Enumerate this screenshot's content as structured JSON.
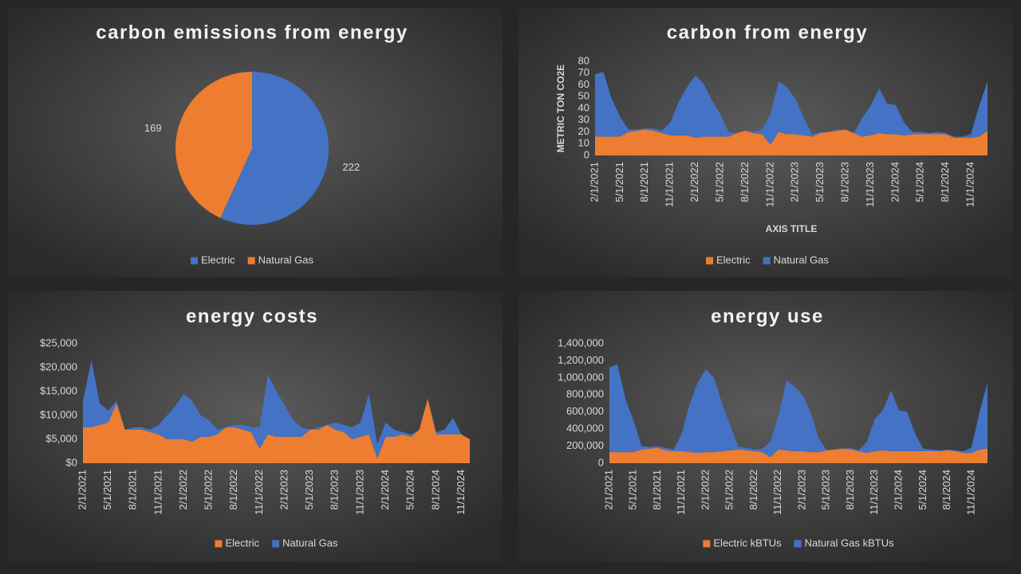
{
  "chart_data": [
    {
      "type": "pie",
      "title": "carbon emissions from energy",
      "categories": [
        "Electric",
        "Natural Gas"
      ],
      "values": [
        222,
        169
      ],
      "colors": [
        "#4472c4",
        "#ed7d31"
      ]
    },
    {
      "type": "area",
      "title": "carbon from energy",
      "y_label": "METRIC TON CO2E",
      "x_label": "AXIS TITLE",
      "categories": [
        "2/1/2021",
        null,
        null,
        "5/1/2021",
        null,
        null,
        "8/1/2021",
        null,
        null,
        "11/1/2021",
        null,
        null,
        "2/1/2022",
        null,
        null,
        "5/1/2022",
        null,
        null,
        "8/1/2022",
        null,
        null,
        "11/1/2022",
        null,
        null,
        "2/1/2023",
        null,
        null,
        "5/1/2023",
        null,
        null,
        "8/1/2023",
        null,
        null,
        "11/1/2023",
        null,
        null,
        "2/1/2024",
        null,
        null,
        "5/1/2024",
        null,
        null,
        "8/1/2024",
        null,
        null,
        "11/1/2024",
        null,
        null
      ],
      "series": [
        {
          "name": "Electric",
          "color": "#ed7d31",
          "values": [
            16,
            16,
            16,
            16,
            20,
            21,
            22,
            21,
            19,
            17,
            17,
            17,
            15,
            16,
            16,
            16,
            16,
            19,
            21,
            19,
            18,
            9,
            20,
            18,
            18,
            17,
            16,
            19,
            20,
            21,
            22,
            19,
            16,
            17,
            19,
            18,
            18,
            17,
            18,
            18,
            18,
            18,
            18,
            15,
            15,
            15,
            16,
            21
          ]
        },
        {
          "name": "Natural Gas",
          "color": "#4472c4",
          "values": [
            53,
            55,
            32,
            17,
            2,
            1,
            1,
            2,
            2,
            11,
            28,
            41,
            53,
            45,
            31,
            19,
            4,
            0,
            0,
            1,
            4,
            26,
            43,
            40,
            30,
            15,
            2,
            1,
            0,
            1,
            0,
            0,
            16,
            25,
            38,
            26,
            25,
            11,
            2,
            2,
            1,
            2,
            1,
            1,
            1,
            3,
            26,
            42
          ]
        }
      ],
      "ylim": [
        0,
        80
      ],
      "yticks": [
        0,
        10,
        20,
        30,
        40,
        50,
        60,
        70,
        80
      ]
    },
    {
      "type": "area",
      "title": "energy costs",
      "categories": [
        "2/1/2021",
        null,
        null,
        "5/1/2021",
        null,
        null,
        "8/1/2021",
        null,
        null,
        "11/1/2021",
        null,
        null,
        "2/1/2022",
        null,
        null,
        "5/1/2022",
        null,
        null,
        "8/1/2022",
        null,
        null,
        "11/1/2022",
        null,
        null,
        "2/1/2023",
        null,
        null,
        "5/1/2023",
        null,
        null,
        "8/1/2023",
        null,
        null,
        "11/1/2023",
        null,
        null,
        "2/1/2024",
        null,
        null,
        "5/1/2024",
        null,
        null,
        "8/1/2024",
        null,
        null,
        "11/1/2024",
        null
      ],
      "series": [
        {
          "name": "Electric",
          "color": "#ed7d31",
          "values": [
            7500,
            7500,
            8000,
            8500,
            12500,
            7000,
            7000,
            7000,
            6500,
            6000,
            5000,
            5000,
            5000,
            4500,
            5500,
            5500,
            6000,
            7500,
            7500,
            7000,
            6500,
            3000,
            6000,
            5500,
            5500,
            5500,
            5500,
            7000,
            7000,
            8000,
            7000,
            6500,
            5000,
            5500,
            6000,
            1000,
            5500,
            5500,
            6000,
            5500,
            7000,
            13500,
            6000,
            6000,
            6000,
            6000,
            5000
          ]
        },
        {
          "name": "Natural Gas",
          "color": "#4472c4",
          "values": [
            5500,
            14000,
            4500,
            2500,
            500,
            0,
            500,
            500,
            500,
            2000,
            5000,
            7000,
            9500,
            8500,
            4500,
            3500,
            1000,
            0,
            500,
            1000,
            1000,
            4500,
            12500,
            9500,
            6500,
            3500,
            2000,
            0,
            500,
            0,
            1500,
            1500,
            2500,
            3000,
            8500,
            3000,
            3000,
            1500,
            500,
            500,
            0,
            0,
            500,
            1000,
            3500,
            0,
            0
          ]
        }
      ],
      "ylim": [
        0,
        25000
      ],
      "yticks": [
        {
          "value": 0,
          "label": "$0"
        },
        {
          "value": 5000,
          "label": "$5,000"
        },
        {
          "value": 10000,
          "label": "$10,000"
        },
        {
          "value": 15000,
          "label": "$15,000"
        },
        {
          "value": 20000,
          "label": "$20,000"
        },
        {
          "value": 25000,
          "label": "$25,000"
        }
      ]
    },
    {
      "type": "area",
      "title": "energy use",
      "categories": [
        "2/1/2021",
        null,
        null,
        "5/1/2021",
        null,
        null,
        "8/1/2021",
        null,
        null,
        "11/1/2021",
        null,
        null,
        "2/1/2022",
        null,
        null,
        "5/1/2022",
        null,
        null,
        "8/1/2022",
        null,
        null,
        "11/1/2022",
        null,
        null,
        "2/1/2023",
        null,
        null,
        "5/1/2023",
        null,
        null,
        "8/1/2023",
        null,
        null,
        "11/1/2023",
        null,
        null,
        "2/1/2024",
        null,
        null,
        "5/1/2024",
        null,
        null,
        "8/1/2024",
        null,
        null,
        "11/1/2024",
        null,
        null
      ],
      "series": [
        {
          "name": "Electric kBTUs",
          "color": "#ed7d31",
          "values": [
            130000,
            130000,
            130000,
            130000,
            160000,
            170000,
            180000,
            150000,
            140000,
            140000,
            130000,
            120000,
            130000,
            130000,
            140000,
            150000,
            160000,
            150000,
            140000,
            130000,
            70000,
            160000,
            150000,
            140000,
            140000,
            130000,
            130000,
            150000,
            160000,
            170000,
            160000,
            140000,
            120000,
            140000,
            150000,
            140000,
            140000,
            140000,
            140000,
            140000,
            140000,
            140000,
            150000,
            140000,
            120000,
            120000,
            160000,
            170000
          ]
        },
        {
          "name": "Natural Gas kBTUs",
          "color": "#4472c4",
          "values": [
            990000,
            1030000,
            620000,
            370000,
            40000,
            20000,
            20000,
            30000,
            20000,
            210000,
            570000,
            830000,
            970000,
            870000,
            560000,
            300000,
            40000,
            30000,
            20000,
            40000,
            180000,
            390000,
            820000,
            760000,
            660000,
            470000,
            170000,
            0,
            0,
            0,
            20000,
            10000,
            130000,
            380000,
            470000,
            710000,
            480000,
            460000,
            210000,
            30000,
            20000,
            10000,
            10000,
            10000,
            20000,
            60000,
            440000,
            770000
          ]
        }
      ],
      "ylim": [
        0,
        1400000
      ],
      "yticks": [
        0,
        {
          "value": 200000,
          "label": "200,000"
        },
        {
          "value": 400000,
          "label": "400,000"
        },
        {
          "value": 600000,
          "label": "600,000"
        },
        {
          "value": 800000,
          "label": "800,000"
        },
        {
          "value": 1000000,
          "label": "1,000,000"
        },
        {
          "value": 1200000,
          "label": "1,200,000"
        },
        {
          "value": 1400000,
          "label": "1,400,000"
        }
      ]
    }
  ]
}
